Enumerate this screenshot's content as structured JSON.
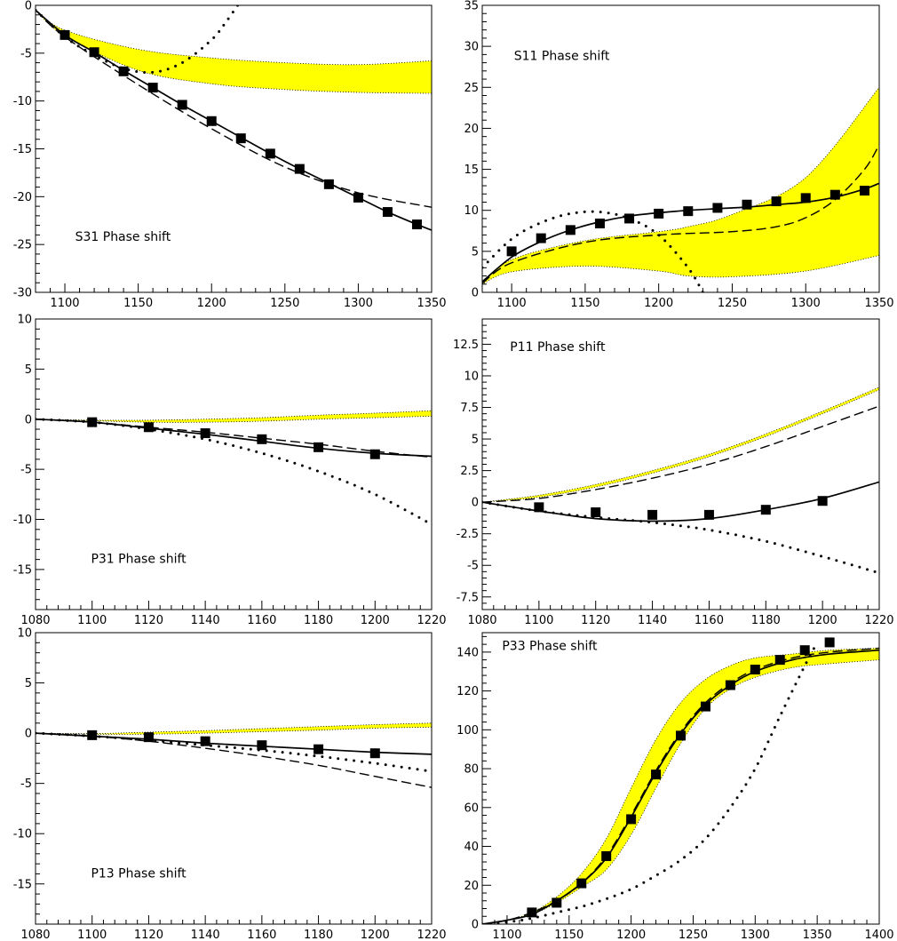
{
  "chart_data": [
    {
      "type": "line",
      "title": "S31 Phase shift",
      "xlim": [
        1080,
        1350
      ],
      "ylim": [
        -30,
        0
      ],
      "xticks": [
        1100,
        1150,
        1200,
        1250,
        1300,
        1350
      ],
      "yticks": [
        0,
        -5,
        -10,
        -15,
        -20,
        -25,
        -30
      ],
      "band": {
        "color": "#ffff00",
        "x": [
          1080,
          1100,
          1150,
          1200,
          1250,
          1300,
          1350
        ],
        "lower": [
          -0.5,
          -3.2,
          -6.8,
          -8.2,
          -8.8,
          -9.1,
          -9.2
        ],
        "upper": [
          -0.5,
          -2.6,
          -4.6,
          -5.5,
          -6.0,
          -6.2,
          -5.8
        ]
      },
      "points": {
        "x": [
          1100,
          1120,
          1140,
          1160,
          1180,
          1200,
          1220,
          1240,
          1260,
          1280,
          1300,
          1320,
          1340
        ],
        "y": [
          -3.1,
          -4.9,
          -6.9,
          -8.6,
          -10.4,
          -12.1,
          -13.9,
          -15.5,
          -17.1,
          -18.7,
          -20.1,
          -21.6,
          -22.9
        ]
      },
      "solid": {
        "x": [
          1080,
          1100,
          1120,
          1140,
          1160,
          1180,
          1200,
          1220,
          1240,
          1260,
          1280,
          1300,
          1320,
          1340,
          1350
        ],
        "y": [
          -0.5,
          -3.1,
          -4.9,
          -6.8,
          -8.6,
          -10.4,
          -12.1,
          -13.8,
          -15.5,
          -17.1,
          -18.6,
          -20.1,
          -21.6,
          -22.9,
          -23.5
        ]
      },
      "dashed": {
        "x": [
          1080,
          1100,
          1150,
          1200,
          1250,
          1300,
          1350
        ],
        "y": [
          -0.5,
          -3.3,
          -8.3,
          -12.9,
          -16.9,
          -19.6,
          -21.1
        ]
      },
      "dotted": {
        "x": [
          1080,
          1100,
          1120,
          1140,
          1160,
          1180,
          1200,
          1210,
          1220
        ],
        "y": [
          -0.5,
          -3.3,
          -5.2,
          -6.6,
          -7.0,
          -6.0,
          -3.6,
          -1.7,
          0.5
        ]
      }
    },
    {
      "type": "line",
      "title": "S11 Phase shift",
      "xlim": [
        1080,
        1350
      ],
      "ylim": [
        0,
        35
      ],
      "xticks": [
        1100,
        1150,
        1200,
        1250,
        1300,
        1350
      ],
      "yticks": [
        0,
        5,
        10,
        15,
        20,
        25,
        30,
        35
      ],
      "band": {
        "color": "#ffff00",
        "x": [
          1080,
          1100,
          1150,
          1200,
          1220,
          1250,
          1300,
          1350
        ],
        "lower": [
          1.0,
          2.5,
          3.2,
          2.6,
          2.0,
          1.9,
          2.6,
          4.5
        ],
        "upper": [
          1.0,
          4.0,
          6.3,
          7.4,
          8.0,
          9.5,
          14.0,
          25.0
        ]
      },
      "points": {
        "x": [
          1100,
          1120,
          1140,
          1160,
          1180,
          1200,
          1220,
          1240,
          1260,
          1280,
          1300,
          1320,
          1340
        ],
        "y": [
          5.0,
          6.6,
          7.6,
          8.4,
          9.0,
          9.6,
          9.9,
          10.3,
          10.7,
          11.1,
          11.5,
          11.9,
          12.4
        ]
      },
      "solid": {
        "x": [
          1080,
          1100,
          1120,
          1140,
          1160,
          1180,
          1200,
          1220,
          1240,
          1260,
          1280,
          1300,
          1320,
          1340,
          1350
        ],
        "y": [
          1.3,
          4.3,
          6.2,
          7.6,
          8.6,
          9.3,
          9.7,
          10.0,
          10.2,
          10.4,
          10.7,
          11.0,
          11.6,
          12.6,
          13.3
        ]
      },
      "dashed": {
        "x": [
          1080,
          1100,
          1150,
          1200,
          1250,
          1280,
          1300,
          1320,
          1340,
          1350
        ],
        "y": [
          1.1,
          3.6,
          6.1,
          7.0,
          7.4,
          8.0,
          9.1,
          11.3,
          15.0,
          18.0
        ]
      },
      "dotted": {
        "x": [
          1080,
          1100,
          1120,
          1140,
          1160,
          1180,
          1200,
          1220,
          1230
        ],
        "y": [
          3.0,
          6.5,
          8.5,
          9.6,
          9.8,
          9.0,
          7.0,
          3.0,
          0
        ]
      }
    },
    {
      "type": "line",
      "title": "P31 Phase shift",
      "xlim": [
        1080,
        1220
      ],
      "ylim": [
        -19,
        10
      ],
      "xticks": [
        1080,
        1100,
        1120,
        1140,
        1160,
        1180,
        1200,
        1220
      ],
      "yticks": [
        10,
        5,
        0,
        -5,
        -10,
        -15
      ],
      "band": {
        "color": "#ffff00",
        "x": [
          1080,
          1100,
          1120,
          1140,
          1160,
          1180,
          1200,
          1220
        ],
        "lower": [
          0,
          -0.15,
          -0.3,
          -0.3,
          -0.2,
          0.0,
          0.15,
          0.3
        ],
        "upper": [
          0,
          -0.1,
          -0.1,
          0.0,
          0.15,
          0.4,
          0.6,
          0.85
        ]
      },
      "points": {
        "x": [
          1100,
          1120,
          1140,
          1160,
          1180,
          1200
        ],
        "y": [
          -0.3,
          -0.8,
          -1.4,
          -2.0,
          -2.8,
          -3.5
        ]
      },
      "solid": {
        "x": [
          1080,
          1100,
          1120,
          1140,
          1160,
          1180,
          1200,
          1220
        ],
        "y": [
          0,
          -0.3,
          -0.9,
          -1.5,
          -2.2,
          -2.9,
          -3.4,
          -3.7
        ]
      },
      "dashed": {
        "x": [
          1080,
          1100,
          1120,
          1140,
          1160,
          1180,
          1200,
          1220
        ],
        "y": [
          0,
          -0.3,
          -0.8,
          -1.3,
          -1.9,
          -2.5,
          -3.2,
          -3.8
        ]
      },
      "dotted": {
        "x": [
          1080,
          1100,
          1120,
          1140,
          1160,
          1180,
          1200,
          1220
        ],
        "y": [
          0,
          -0.3,
          -1.0,
          -2.0,
          -3.4,
          -5.2,
          -7.5,
          -10.5
        ]
      }
    },
    {
      "type": "line",
      "title": "P11 Phase shift",
      "xlim": [
        1080,
        1220
      ],
      "ylim": [
        -8.5,
        14.5
      ],
      "xticks": [
        1080,
        1100,
        1120,
        1140,
        1160,
        1180,
        1200,
        1220
      ],
      "yticks": [
        12.5,
        10,
        7.5,
        5,
        2.5,
        0,
        -2.5,
        -5,
        -7.5
      ],
      "ytick_labels": [
        "12.5",
        "10",
        "7.5",
        "5",
        "2.5",
        "0",
        "-2.5",
        "-5",
        "-7.5"
      ],
      "band": {
        "color": "#ffff00",
        "x": [
          1080,
          1100,
          1120,
          1140,
          1160,
          1180,
          1200,
          1220
        ],
        "lower": [
          0,
          0.4,
          1.2,
          2.3,
          3.6,
          5.2,
          7.0,
          8.9
        ],
        "upper": [
          0,
          0.55,
          1.4,
          2.5,
          3.8,
          5.4,
          7.2,
          9.1
        ]
      },
      "points": {
        "x": [
          1100,
          1120,
          1140,
          1160,
          1180,
          1200
        ],
        "y": [
          -0.4,
          -0.8,
          -1.0,
          -1.0,
          -0.6,
          0.1
        ]
      },
      "solid": {
        "x": [
          1080,
          1100,
          1120,
          1140,
          1160,
          1180,
          1200,
          1220
        ],
        "y": [
          0,
          -0.7,
          -1.3,
          -1.5,
          -1.3,
          -0.6,
          0.3,
          1.6
        ]
      },
      "dashed": {
        "x": [
          1080,
          1100,
          1120,
          1140,
          1160,
          1180,
          1200,
          1220
        ],
        "y": [
          0,
          0.3,
          1.0,
          1.9,
          3.0,
          4.4,
          6.0,
          7.6
        ]
      },
      "dotted": {
        "x": [
          1080,
          1100,
          1120,
          1140,
          1160,
          1180,
          1200,
          1220
        ],
        "y": [
          0,
          -0.7,
          -1.2,
          -1.6,
          -2.2,
          -3.1,
          -4.3,
          -5.6
        ]
      }
    },
    {
      "type": "line",
      "title": "P13 Phase shift",
      "xlim": [
        1080,
        1220
      ],
      "ylim": [
        -19,
        10
      ],
      "xticks": [
        1080,
        1100,
        1120,
        1140,
        1160,
        1180,
        1200,
        1220
      ],
      "yticks": [
        10,
        5,
        0,
        -5,
        -10,
        -15
      ],
      "band": {
        "color": "#ffff00",
        "x": [
          1080,
          1100,
          1120,
          1140,
          1160,
          1180,
          1200,
          1220
        ],
        "lower": [
          0,
          -0.1,
          -0.1,
          0.0,
          0.15,
          0.3,
          0.5,
          0.6
        ],
        "upper": [
          0,
          -0.05,
          0.1,
          0.25,
          0.45,
          0.65,
          0.85,
          1.0
        ]
      },
      "points": {
        "x": [
          1100,
          1120,
          1140,
          1160,
          1180,
          1200
        ],
        "y": [
          -0.2,
          -0.4,
          -0.8,
          -1.2,
          -1.6,
          -2.0
        ]
      },
      "solid": {
        "x": [
          1080,
          1100,
          1120,
          1140,
          1160,
          1180,
          1200,
          1220
        ],
        "y": [
          0,
          -0.3,
          -0.6,
          -1.0,
          -1.3,
          -1.6,
          -1.9,
          -2.1
        ]
      },
      "dashed": {
        "x": [
          1080,
          1100,
          1120,
          1140,
          1160,
          1180,
          1200,
          1220
        ],
        "y": [
          0,
          -0.3,
          -0.8,
          -1.5,
          -2.3,
          -3.2,
          -4.3,
          -5.4
        ]
      },
      "dotted": {
        "x": [
          1080,
          1100,
          1120,
          1140,
          1160,
          1180,
          1200,
          1220
        ],
        "y": [
          0,
          -0.3,
          -0.7,
          -1.2,
          -1.7,
          -2.3,
          -3.0,
          -3.8
        ]
      }
    },
    {
      "type": "line",
      "title": "P33 Phase shift",
      "xlim": [
        1080,
        1400
      ],
      "ylim": [
        0,
        150
      ],
      "xticks": [
        1100,
        1150,
        1200,
        1250,
        1300,
        1350,
        1400
      ],
      "yticks": [
        0,
        20,
        40,
        60,
        80,
        100,
        120,
        140
      ],
      "band": {
        "color": "#ffff00",
        "x": [
          1080,
          1100,
          1120,
          1140,
          1160,
          1180,
          1200,
          1220,
          1240,
          1260,
          1280,
          1300,
          1330,
          1360,
          1400
        ],
        "lower": [
          0,
          2,
          5,
          11,
          19,
          28,
          46,
          70,
          93,
          111,
          121,
          127,
          132,
          134,
          136
        ],
        "upper": [
          0,
          2,
          6,
          14,
          26,
          44,
          70,
          95,
          114,
          126,
          133,
          137,
          139,
          141,
          142
        ]
      },
      "points": {
        "x": [
          1120,
          1140,
          1160,
          1180,
          1200,
          1220,
          1240,
          1260,
          1280,
          1300,
          1320,
          1340,
          1360
        ],
        "y": [
          6,
          11,
          21,
          35,
          54,
          77,
          97,
          112,
          123,
          131,
          136,
          141,
          145
        ]
      },
      "solid": {
        "x": [
          1080,
          1100,
          1120,
          1140,
          1160,
          1180,
          1200,
          1220,
          1240,
          1260,
          1280,
          1300,
          1330,
          1360,
          1400
        ],
        "y": [
          0,
          2,
          5,
          12,
          21,
          34,
          55,
          78,
          98,
          113,
          123,
          130,
          136,
          139,
          141
        ]
      },
      "dashed": {
        "x": [
          1080,
          1100,
          1120,
          1140,
          1160,
          1180,
          1200,
          1220,
          1240,
          1260,
          1280,
          1300,
          1330,
          1360,
          1400
        ],
        "y": [
          0,
          2,
          6,
          12,
          21,
          35,
          56,
          79,
          99,
          114,
          124,
          131,
          137,
          140,
          142
        ]
      },
      "dotted": {
        "x": [
          1080,
          1100,
          1120,
          1140,
          1160,
          1180,
          1200,
          1220,
          1240,
          1260,
          1280,
          1300,
          1320,
          1340,
          1350
        ],
        "y": [
          0,
          1,
          3,
          6,
          9,
          13,
          18,
          25,
          33,
          44,
          60,
          80,
          107,
          133,
          145
        ]
      }
    }
  ]
}
